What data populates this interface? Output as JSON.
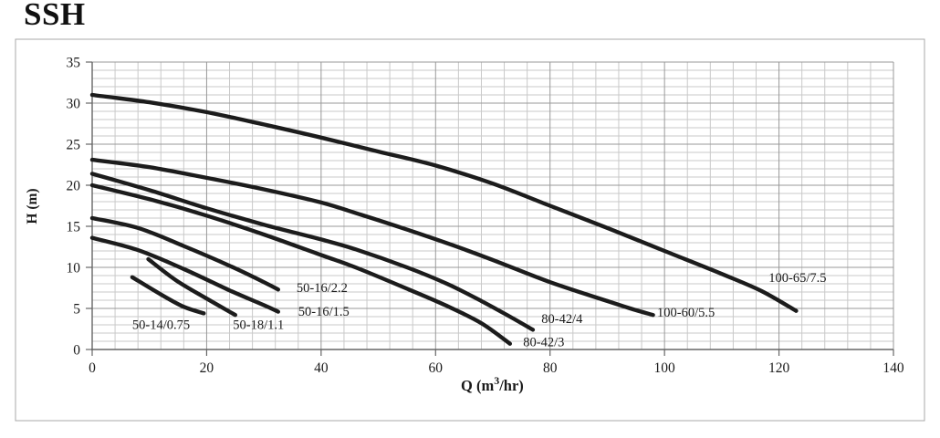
{
  "title": "SSH",
  "chart_data": {
    "type": "line",
    "title": "SSH",
    "xlabel": {
      "pre": "Q (m",
      "sup": "3",
      "post": "/hr)"
    },
    "ylabel": "H (m)",
    "xlim": [
      0,
      140
    ],
    "ylim": [
      0,
      35
    ],
    "x_ticks": [
      0,
      20,
      40,
      60,
      80,
      100,
      120,
      140
    ],
    "y_ticks": [
      0,
      5,
      10,
      15,
      20,
      25,
      30,
      35
    ],
    "x_minor_step": 4,
    "y_minor_step": 1,
    "grid": "on",
    "legend_position": "none",
    "colors": {
      "curve": "#1c1c1c",
      "grid_minor": "#c9c9c9",
      "grid_major": "#999999",
      "axis": "#666666",
      "text": "#1a1a1a",
      "border": "#a8a8a8"
    },
    "series": [
      {
        "name": "100-65/7.5",
        "label": "100-65/7.5",
        "label_x": 118.2,
        "label_y": 8.2,
        "points": [
          [
            0,
            31
          ],
          [
            10,
            30.1
          ],
          [
            20,
            28.9
          ],
          [
            30,
            27.4
          ],
          [
            40,
            25.8
          ],
          [
            50,
            24.1
          ],
          [
            60,
            22.4
          ],
          [
            70,
            20.2
          ],
          [
            80,
            17.5
          ],
          [
            90,
            14.8
          ],
          [
            100,
            12.0
          ],
          [
            110,
            9.2
          ],
          [
            117,
            7.1
          ],
          [
            123,
            4.7
          ]
        ]
      },
      {
        "name": "100-60/5.5",
        "label": "100-60/5.5",
        "label_x": 98.7,
        "label_y": 4.0,
        "points": [
          [
            0,
            23.1
          ],
          [
            10,
            22.2
          ],
          [
            20,
            20.9
          ],
          [
            30,
            19.5
          ],
          [
            40,
            17.9
          ],
          [
            47,
            16.4
          ],
          [
            55,
            14.6
          ],
          [
            63,
            12.7
          ],
          [
            70,
            10.9
          ],
          [
            80,
            8.2
          ],
          [
            90,
            5.9
          ],
          [
            94,
            5.0
          ],
          [
            98,
            4.2
          ]
        ]
      },
      {
        "name": "80-42/4",
        "label": "80-42/4",
        "label_x": 78.5,
        "label_y": 3.2,
        "points": [
          [
            0,
            21.4
          ],
          [
            10,
            19.4
          ],
          [
            20,
            17.2
          ],
          [
            30,
            15.2
          ],
          [
            40,
            13.4
          ],
          [
            46,
            12.2
          ],
          [
            55,
            10.0
          ],
          [
            62,
            8.0
          ],
          [
            68,
            5.9
          ],
          [
            73,
            4.0
          ],
          [
            77,
            2.4
          ]
        ]
      },
      {
        "name": "80-42/3",
        "label": "80-42/3",
        "label_x": 75.3,
        "label_y": 0.4,
        "points": [
          [
            0,
            20
          ],
          [
            10,
            18.3
          ],
          [
            20,
            16.3
          ],
          [
            30,
            14.0
          ],
          [
            40,
            11.5
          ],
          [
            46,
            10.0
          ],
          [
            55,
            7.4
          ],
          [
            62,
            5.3
          ],
          [
            68,
            3.2
          ],
          [
            73,
            0.7
          ]
        ]
      },
      {
        "name": "50-16/2.2",
        "label": "50-16/2.2",
        "label_x": 35.7,
        "label_y": 7.0,
        "points": [
          [
            0,
            16
          ],
          [
            8,
            14.8
          ],
          [
            16,
            12.6
          ],
          [
            24,
            10.2
          ],
          [
            30,
            8.2
          ],
          [
            32.5,
            7.3
          ]
        ]
      },
      {
        "name": "50-16/1.5",
        "label": "50-16/1.5",
        "label_x": 36.0,
        "label_y": 4.1,
        "points": [
          [
            0,
            13.6
          ],
          [
            8,
            12.1
          ],
          [
            16,
            9.8
          ],
          [
            24,
            7.2
          ],
          [
            30,
            5.4
          ],
          [
            32.5,
            4.6
          ]
        ]
      },
      {
        "name": "50-18/1.1",
        "label": "50-18/1.1",
        "label_x": 24.6,
        "label_y": 2.5,
        "points": [
          [
            9.8,
            11.0
          ],
          [
            14.7,
            8.4
          ],
          [
            20,
            6.2
          ],
          [
            25,
            4.2
          ]
        ]
      },
      {
        "name": "50-14/0.75",
        "label": "50-14/0.75",
        "label_x": 7.0,
        "label_y": 2.5,
        "points": [
          [
            7,
            8.8
          ],
          [
            12,
            6.7
          ],
          [
            16,
            5.2
          ],
          [
            19.5,
            4.4
          ]
        ]
      }
    ]
  }
}
